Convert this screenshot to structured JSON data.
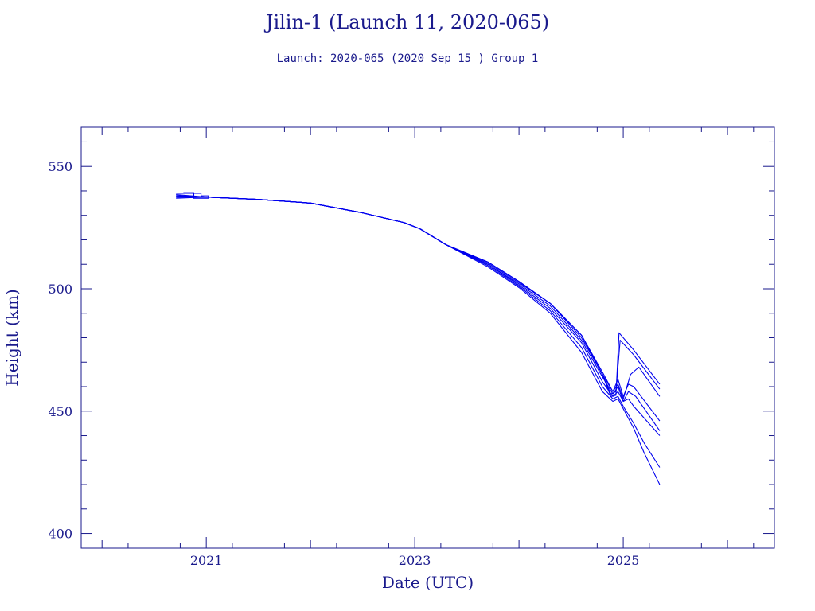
{
  "chart_data": {
    "type": "line",
    "title": "Jilin-1 (Launch 11, 2020-065)",
    "subtitle": "Launch: 2020-065  (2020 Sep 15 )  Group 1",
    "xlabel": "Date (UTC)",
    "ylabel": "Height (km)",
    "xlim": [
      2019.8,
      2026.45
    ],
    "ylim": [
      394,
      566
    ],
    "xticks": [
      2021,
      2023,
      2025
    ],
    "xtick_labels": [
      "2021",
      "2023",
      "2025"
    ],
    "yticks": [
      400,
      450,
      500,
      550
    ],
    "ytick_labels": [
      "400",
      "450",
      "500",
      "550"
    ],
    "grid": false,
    "line_color": "#0000ee",
    "axis_color": "#1a1a8c",
    "series": [
      {
        "x": [
          2020.71,
          2021.0,
          2021.5,
          2022.0,
          2022.5,
          2022.9,
          2023.05,
          2023.3,
          2023.7,
          2024.0,
          2024.3,
          2024.6,
          2024.8,
          2024.88,
          2024.93,
          2024.96,
          2025.1,
          2025.35
        ],
        "y": [
          538,
          537.5,
          536.5,
          535,
          531,
          527,
          524.5,
          518,
          511,
          503,
          494,
          481,
          465,
          456,
          456.5,
          482,
          475,
          461
        ]
      },
      {
        "x": [
          2020.71,
          2021.0,
          2021.5,
          2022.0,
          2022.5,
          2022.9,
          2023.05,
          2023.3,
          2023.7,
          2024.0,
          2024.3,
          2024.6,
          2024.8,
          2024.88,
          2024.93,
          2024.97,
          2025.1,
          2025.35
        ],
        "y": [
          538.5,
          537.5,
          536.5,
          535,
          531,
          527,
          524.5,
          518,
          511,
          503,
          494,
          481,
          465,
          457,
          458,
          479,
          473,
          459
        ]
      },
      {
        "x": [
          2020.71,
          2021.0,
          2021.5,
          2022.0,
          2022.5,
          2022.9,
          2023.05,
          2023.3,
          2023.7,
          2024.0,
          2024.3,
          2024.6,
          2024.8,
          2024.9,
          2024.95,
          2025.0,
          2025.07,
          2025.15,
          2025.35
        ],
        "y": [
          537.5,
          537.5,
          536.5,
          535,
          531,
          527,
          524.5,
          518,
          511,
          503,
          494,
          481,
          466,
          458,
          461,
          455,
          465,
          468,
          456
        ]
      },
      {
        "x": [
          2020.71,
          2021.0,
          2021.5,
          2022.0,
          2022.5,
          2022.9,
          2023.05,
          2023.3,
          2023.7,
          2024.0,
          2024.3,
          2024.6,
          2024.8,
          2024.9,
          2024.95,
          2025.0,
          2025.05,
          2025.1,
          2025.35
        ],
        "y": [
          538,
          537.5,
          536.5,
          535,
          531,
          527,
          524.5,
          518,
          510.5,
          502.5,
          494,
          480,
          465,
          458,
          463,
          456,
          461,
          460,
          446
        ]
      },
      {
        "x": [
          2020.71,
          2021.0,
          2021.5,
          2022.0,
          2022.5,
          2022.9,
          2023.05,
          2023.3,
          2023.7,
          2024.0,
          2024.3,
          2024.6,
          2024.8,
          2024.9,
          2024.95,
          2025.0,
          2025.05,
          2025.12,
          2025.35
        ],
        "y": [
          537,
          537.5,
          536.5,
          535,
          531,
          527,
          524.5,
          518,
          510,
          502,
          493,
          479,
          464,
          457,
          460,
          454,
          458,
          456,
          442
        ]
      },
      {
        "x": [
          2020.71,
          2021.0,
          2021.5,
          2022.0,
          2022.5,
          2022.9,
          2023.05,
          2023.3,
          2023.7,
          2024.0,
          2024.3,
          2024.6,
          2024.8,
          2024.9,
          2024.95,
          2025.0,
          2025.05,
          2025.1,
          2025.35
        ],
        "y": [
          538,
          537.5,
          536.5,
          535,
          531,
          527,
          524.5,
          518,
          510,
          501.5,
          492,
          478,
          462,
          456,
          458,
          454,
          455,
          452,
          440
        ]
      },
      {
        "x": [
          2020.71,
          2021.0,
          2021.5,
          2022.0,
          2022.5,
          2022.9,
          2023.05,
          2023.3,
          2023.7,
          2024.0,
          2024.3,
          2024.6,
          2024.8,
          2024.9,
          2024.95,
          2025.0,
          2025.1,
          2025.2,
          2025.35
        ],
        "y": [
          537.5,
          537.5,
          536.5,
          535,
          531,
          527,
          524.5,
          518,
          509.5,
          501,
          491,
          476,
          460,
          455,
          456,
          452,
          445,
          437,
          427
        ]
      },
      {
        "x": [
          2020.71,
          2021.0,
          2021.5,
          2022.0,
          2022.5,
          2022.9,
          2023.05,
          2023.3,
          2023.7,
          2024.0,
          2024.3,
          2024.6,
          2024.8,
          2024.9,
          2024.95,
          2025.0,
          2025.1,
          2025.2,
          2025.35
        ],
        "y": [
          538,
          537.5,
          536.5,
          535,
          531,
          527,
          524.5,
          518,
          509,
          500.5,
          490,
          474,
          458,
          454,
          455,
          451,
          443,
          433,
          420
        ]
      }
    ]
  }
}
